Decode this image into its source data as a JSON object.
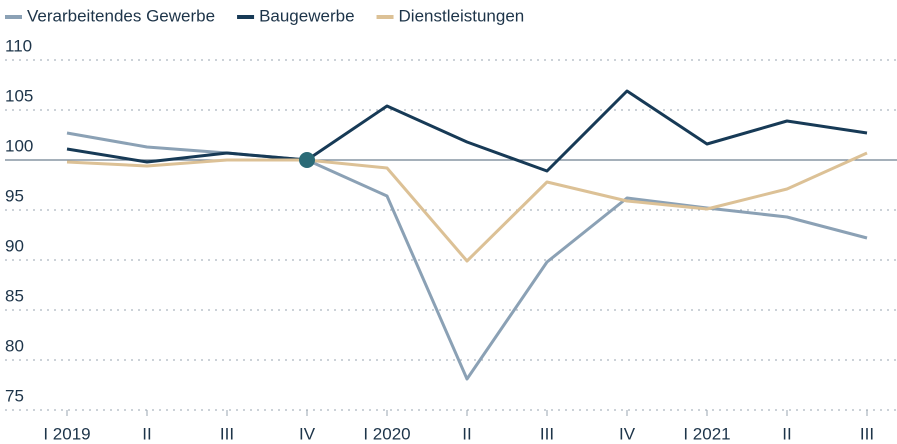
{
  "chart_data": {
    "type": "line",
    "categories": [
      "I 2019",
      "II",
      "III",
      "IV",
      "I 2020",
      "II",
      "III",
      "IV",
      "I 2021",
      "II",
      "III"
    ],
    "series": [
      {
        "name": "Verarbeitendes Gewerbe",
        "color": "#8ba1b5",
        "values": [
          102.7,
          101.3,
          100.7,
          100,
          96.4,
          78.1,
          89.8,
          96.2,
          95.2,
          94.3,
          92.2
        ]
      },
      {
        "name": "Baugewerbe",
        "color": "#173a56",
        "values": [
          101.1,
          99.8,
          100.7,
          100,
          105.4,
          101.8,
          98.9,
          106.9,
          101.6,
          103.9,
          102.7
        ]
      },
      {
        "name": "Dienstleistungen",
        "color": "#dcc196",
        "values": [
          99.8,
          99.4,
          100,
          100,
          99.2,
          89.9,
          97.8,
          95.9,
          95.1,
          97.1,
          100.7
        ]
      }
    ],
    "ylim": [
      75,
      110
    ],
    "yticks": [
      75,
      80,
      85,
      90,
      95,
      100,
      105,
      110
    ],
    "grid": true,
    "reference_line": 100,
    "legend": "top-left"
  }
}
